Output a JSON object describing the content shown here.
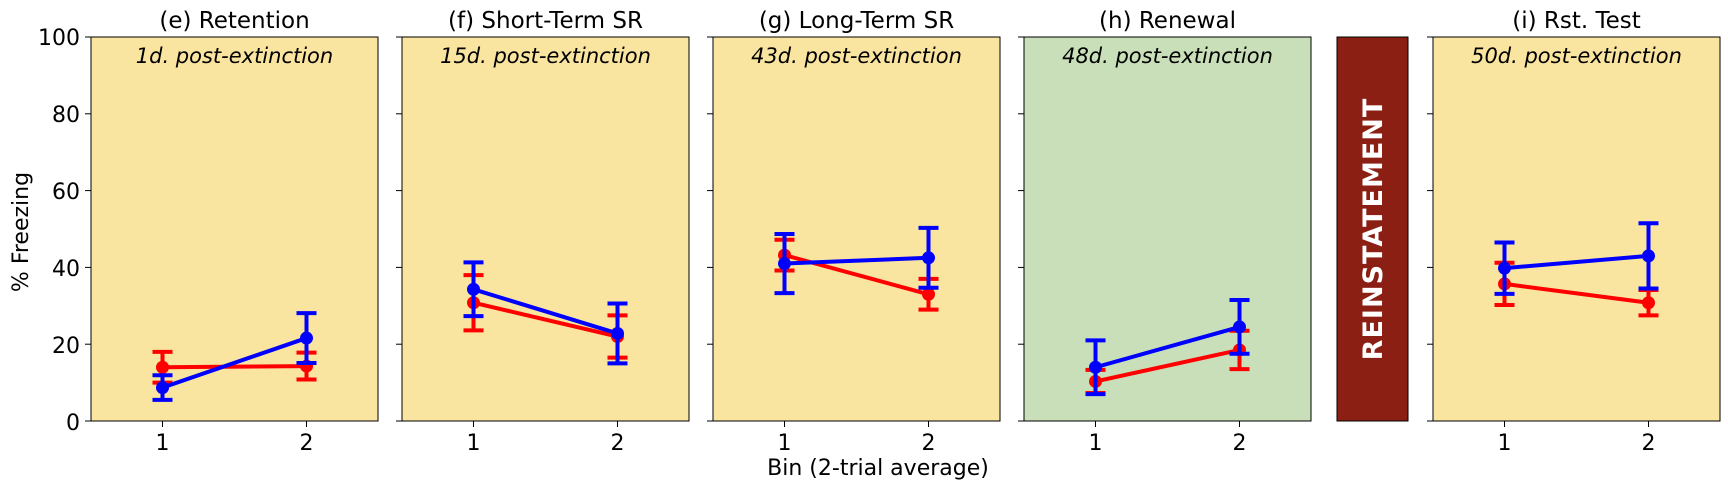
{
  "figure": {
    "ylabel": "% Freezing",
    "xlabel": "Bin (2-trial average)",
    "reinstatement_label": "REINSTATEMENT",
    "reinstatement_color": "#8b1f14",
    "yticks": [
      "0",
      "20",
      "40",
      "60",
      "80",
      "100"
    ],
    "series_colors": {
      "red": "#ff0000",
      "blue": "#0000ff"
    },
    "background_colors": {
      "yellow": "#f9e4a0",
      "green": "#c9dfb9"
    }
  },
  "chart_data": [
    {
      "type": "line",
      "title": "(e) Retention",
      "annotation": "1d. post-extinction",
      "background": "yellow",
      "x": [
        1,
        2
      ],
      "xticks": [
        "1",
        "2"
      ],
      "ylim": [
        0,
        100
      ],
      "series": [
        {
          "color": "red",
          "values": [
            14,
            14.3
          ],
          "errors": [
            4,
            3.5
          ]
        },
        {
          "color": "blue",
          "values": [
            8.7,
            21.6
          ],
          "errors": [
            3.2,
            6.5
          ]
        }
      ]
    },
    {
      "type": "line",
      "title": "(f) Short-Term SR",
      "annotation": "15d. post-extinction",
      "background": "yellow",
      "x": [
        1,
        2
      ],
      "xticks": [
        "1",
        "2"
      ],
      "ylim": [
        0,
        100
      ],
      "series": [
        {
          "color": "red",
          "values": [
            30.8,
            22
          ],
          "errors": [
            7.2,
            5.5
          ]
        },
        {
          "color": "blue",
          "values": [
            34.3,
            22.8
          ],
          "errors": [
            7,
            7.8
          ]
        }
      ]
    },
    {
      "type": "line",
      "title": "(g) Long-Term SR",
      "annotation": "43d. post-extinction",
      "background": "yellow",
      "x": [
        1,
        2
      ],
      "xticks": [
        "1",
        "2"
      ],
      "ylim": [
        0,
        100
      ],
      "series": [
        {
          "color": "red",
          "values": [
            43.2,
            33
          ],
          "errors": [
            4,
            4
          ]
        },
        {
          "color": "blue",
          "values": [
            41,
            42.5
          ],
          "errors": [
            7.7,
            7.8
          ]
        }
      ]
    },
    {
      "type": "line",
      "title": "(h) Renewal",
      "annotation": "48d. post-extinction",
      "background": "green",
      "x": [
        1,
        2
      ],
      "xticks": [
        "1",
        "2"
      ],
      "ylim": [
        0,
        100
      ],
      "series": [
        {
          "color": "red",
          "values": [
            10.3,
            18.5
          ],
          "errors": [
            3,
            5
          ]
        },
        {
          "color": "blue",
          "values": [
            14,
            24.5
          ],
          "errors": [
            7,
            7
          ]
        }
      ]
    },
    {
      "type": "line",
      "title": "(i) Rst. Test",
      "annotation": "50d. post-extinction",
      "background": "yellow",
      "x": [
        1,
        2
      ],
      "xticks": [
        "1",
        "2"
      ],
      "ylim": [
        0,
        100
      ],
      "series": [
        {
          "color": "red",
          "values": [
            35.7,
            30.8
          ],
          "errors": [
            5.5,
            3.3
          ]
        },
        {
          "color": "blue",
          "values": [
            39.8,
            43
          ],
          "errors": [
            6.7,
            8.5
          ]
        }
      ]
    }
  ]
}
